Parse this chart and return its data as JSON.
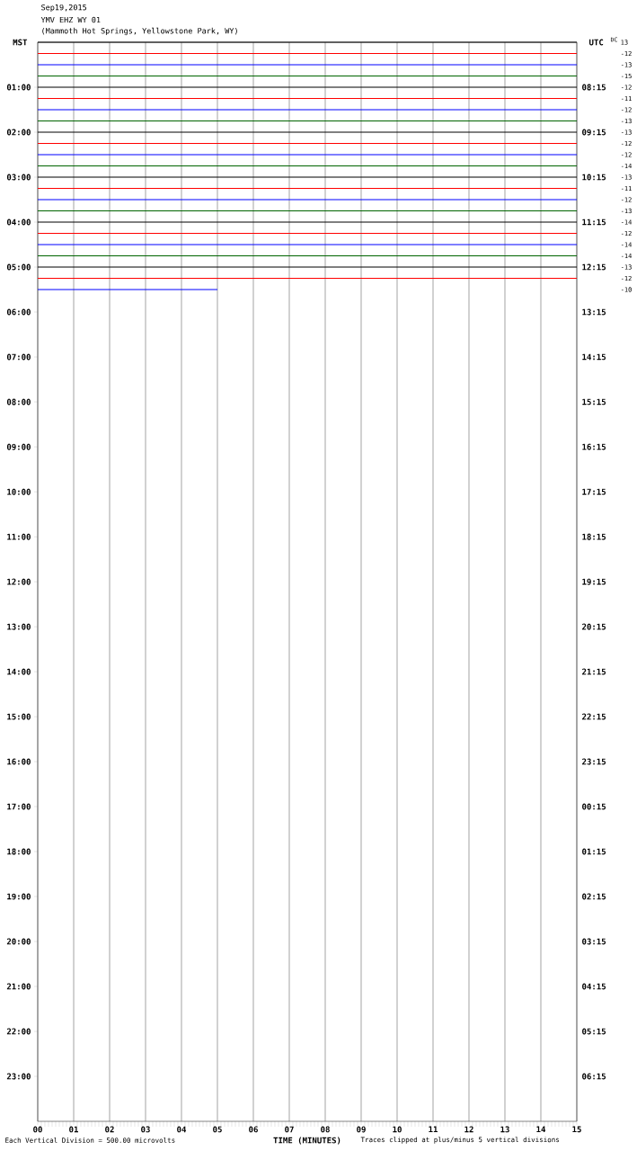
{
  "chart_data": {
    "type": "line",
    "title": "Sep19,2015",
    "subtitle": "YMV EHZ WY 01",
    "xlabel": "TIME (MINUTES)",
    "ylabel": "MST",
    "y2label": "UTC",
    "annotations": [
      "(Mammoth Hot Springs, Yellowstone Park, WY)",
      "Each Vertical Division =  500.00 microvolts",
      "Traces clipped at plus/minus 5 vertical divisions",
      "DC",
      "13",
      "-12",
      "-13",
      "-15",
      "-12",
      "-11",
      "-12",
      "-13",
      "-13",
      "-12",
      "-12",
      "-14",
      "-13",
      "-11",
      "-12",
      "-13",
      "-14",
      "-12",
      "-14",
      "-14",
      "-13",
      "-12",
      "-10",
      "08:15",
      "09:15",
      "10:15",
      "11:15",
      "12:15",
      "13:15",
      "14:15",
      "15:15",
      "16:15",
      "17:15",
      "18:15",
      "19:15",
      "20:15",
      "21:15",
      "22:15",
      "23:15",
      "00:15",
      "01:15",
      "02:15",
      "03:15",
      "04:15",
      "05:15",
      "06:15"
    ],
    "xlim": [
      0,
      15
    ],
    "xticks": [
      {
        "value": 0,
        "label": "00"
      },
      {
        "value": 1,
        "label": "01"
      },
      {
        "value": 2,
        "label": "02"
      },
      {
        "value": 3,
        "label": "03"
      },
      {
        "value": 4,
        "label": "04"
      },
      {
        "value": 5,
        "label": "05"
      },
      {
        "value": 6,
        "label": "06"
      },
      {
        "value": 7,
        "label": "07"
      },
      {
        "value": 8,
        "label": "08"
      },
      {
        "value": 9,
        "label": "09"
      },
      {
        "value": 10,
        "label": "10"
      },
      {
        "value": 11,
        "label": "11"
      },
      {
        "value": 12,
        "label": "12"
      },
      {
        "value": 13,
        "label": "13"
      },
      {
        "value": 14,
        "label": "14"
      },
      {
        "value": 15,
        "label": "15"
      }
    ],
    "ylim": [
      24,
      0
    ],
    "yticks": [
      {
        "value": 1,
        "label": "01:00"
      },
      {
        "value": 2,
        "label": "02:00"
      },
      {
        "value": 3,
        "label": "03:00"
      },
      {
        "value": 4,
        "label": "04:00"
      },
      {
        "value": 5,
        "label": "05:00"
      },
      {
        "value": 6,
        "label": "06:00"
      },
      {
        "value": 7,
        "label": "07:00"
      },
      {
        "value": 8,
        "label": "08:00"
      },
      {
        "value": 9,
        "label": "09:00"
      },
      {
        "value": 10,
        "label": "10:00"
      },
      {
        "value": 11,
        "label": "11:00"
      },
      {
        "value": 12,
        "label": "12:00"
      },
      {
        "value": 13,
        "label": "13:00"
      },
      {
        "value": 14,
        "label": "14:00"
      },
      {
        "value": 15,
        "label": "15:00"
      },
      {
        "value": 16,
        "label": "16:00"
      },
      {
        "value": 17,
        "label": "17:00"
      },
      {
        "value": 18,
        "label": "18:00"
      },
      {
        "value": 19,
        "label": "19:00"
      },
      {
        "value": 20,
        "label": "20:00"
      },
      {
        "value": 21,
        "label": "21:00"
      },
      {
        "value": 22,
        "label": "22:00"
      },
      {
        "value": 23,
        "label": "23:00"
      }
    ],
    "grid": "x",
    "series": [
      {
        "color": "#000000",
        "x": [
          0,
          15
        ],
        "values": [
          0,
          0
        ]
      },
      {
        "color": "#ff0000",
        "x": [
          0,
          15
        ],
        "values": [
          0.25,
          0.25
        ]
      },
      {
        "color": "#0000ff",
        "x": [
          0,
          15
        ],
        "values": [
          0.5,
          0.5
        ]
      },
      {
        "color": "#006400",
        "x": [
          0,
          15
        ],
        "values": [
          0.75,
          0.75
        ]
      },
      {
        "color": "#000000",
        "x": [
          0,
          15
        ],
        "values": [
          1,
          1
        ]
      },
      {
        "color": "#ff0000",
        "x": [
          0,
          15
        ],
        "values": [
          1.25,
          1.25
        ]
      },
      {
        "color": "#0000ff",
        "x": [
          0,
          15
        ],
        "values": [
          1.5,
          1.5
        ]
      },
      {
        "color": "#006400",
        "x": [
          0,
          15
        ],
        "values": [
          1.75,
          1.75
        ]
      },
      {
        "color": "#000000",
        "x": [
          0,
          15
        ],
        "values": [
          2,
          2
        ]
      },
      {
        "color": "#ff0000",
        "x": [
          0,
          15
        ],
        "values": [
          2.25,
          2.25
        ]
      },
      {
        "color": "#0000ff",
        "x": [
          0,
          15
        ],
        "values": [
          2.5,
          2.5
        ]
      },
      {
        "color": "#006400",
        "x": [
          0,
          15
        ],
        "values": [
          2.75,
          2.75
        ]
      },
      {
        "color": "#000000",
        "x": [
          0,
          15
        ],
        "values": [
          3,
          3
        ]
      },
      {
        "color": "#ff0000",
        "x": [
          0,
          15
        ],
        "values": [
          3.25,
          3.25
        ]
      },
      {
        "color": "#0000ff",
        "x": [
          0,
          15
        ],
        "values": [
          3.5,
          3.5
        ]
      },
      {
        "color": "#006400",
        "x": [
          0,
          15
        ],
        "values": [
          3.75,
          3.75
        ]
      },
      {
        "color": "#000000",
        "x": [
          0,
          15
        ],
        "values": [
          4,
          4
        ]
      },
      {
        "color": "#ff0000",
        "x": [
          0,
          15
        ],
        "values": [
          4.25,
          4.25
        ]
      },
      {
        "color": "#0000ff",
        "x": [
          0,
          15
        ],
        "values": [
          4.5,
          4.5
        ]
      },
      {
        "color": "#006400",
        "x": [
          0,
          15
        ],
        "values": [
          4.75,
          4.75
        ]
      },
      {
        "color": "#000000",
        "x": [
          0,
          15
        ],
        "values": [
          5,
          5
        ]
      },
      {
        "color": "#ff0000",
        "x": [
          0,
          15
        ],
        "values": [
          5.25,
          5.25
        ]
      },
      {
        "color": "#0000ff",
        "x": [
          0,
          5
        ],
        "values": [
          5.5,
          5.5
        ]
      }
    ]
  }
}
